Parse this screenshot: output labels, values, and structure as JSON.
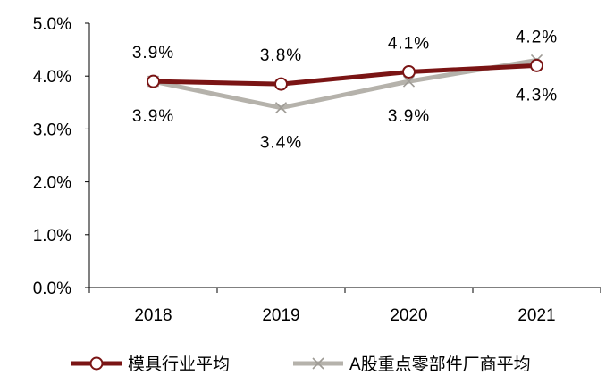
{
  "chart_data": {
    "type": "line",
    "title": "",
    "xlabel": "",
    "ylabel": "",
    "categories": [
      "2018",
      "2019",
      "2020",
      "2021"
    ],
    "ylim": [
      0,
      5
    ],
    "y_ticks": [
      0,
      1,
      2,
      3,
      4,
      5
    ],
    "y_tick_labels": [
      "0.0%",
      "1.0%",
      "2.0%",
      "3.0%",
      "4.0%",
      "5.0%"
    ],
    "grid": false,
    "legend_position": "bottom",
    "series": [
      {
        "name": "模具行业平均",
        "values": [
          3.9,
          3.85,
          4.08,
          4.2
        ],
        "data_labels": [
          "3.9%",
          "3.8%",
          "4.1%",
          "4.2%"
        ],
        "label_side": [
          "above",
          "above",
          "above",
          "above"
        ],
        "color": "#7a1414",
        "marker": "circle"
      },
      {
        "name": "A股重点零部件厂商平均",
        "values": [
          3.9,
          3.4,
          3.9,
          4.3
        ],
        "data_labels": [
          "3.9%",
          "3.4%",
          "3.9%",
          "4.3%"
        ],
        "label_side": [
          "below",
          "below",
          "below",
          "below"
        ],
        "color": "#b5b2ab",
        "marker": "x"
      }
    ]
  }
}
